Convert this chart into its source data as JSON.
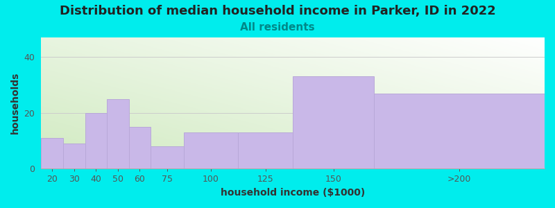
{
  "title": "Distribution of median household income in Parker, ID in 2022",
  "subtitle": "All residents",
  "xlabel": "household income ($1000)",
  "ylabel": "households",
  "categories": [
    "20",
    "30",
    "40",
    "50",
    "60",
    "75",
    "100",
    "125",
    "150",
    ">200"
  ],
  "values": [
    11,
    9,
    20,
    25,
    15,
    8,
    13,
    13,
    33,
    27
  ],
  "bar_color": "#c9b8e8",
  "bar_edgecolor": "#b8a8d8",
  "background_color": "#00eded",
  "plot_bg_color_topleft": "#d8eec8",
  "plot_bg_color_topright": "#e8f0e8",
  "plot_bg_color_bottomleft": "#f0f8e8",
  "plot_bg_color_bottomright": "#ffffff",
  "ylim": [
    0,
    47
  ],
  "yticks": [
    0,
    20,
    40
  ],
  "title_fontsize": 13,
  "subtitle_fontsize": 11,
  "subtitle_color": "#008888",
  "axis_label_fontsize": 10,
  "tick_fontsize": 9,
  "x_left": [
    10,
    20,
    30,
    40,
    50,
    60,
    75,
    100,
    125,
    162
  ],
  "x_right": [
    20,
    30,
    40,
    50,
    60,
    75,
    100,
    125,
    162,
    240
  ],
  "tick_positions": [
    15,
    25,
    35,
    45,
    55,
    67.5,
    87.5,
    112.5,
    143.5,
    201
  ],
  "xlim": [
    10,
    240
  ]
}
